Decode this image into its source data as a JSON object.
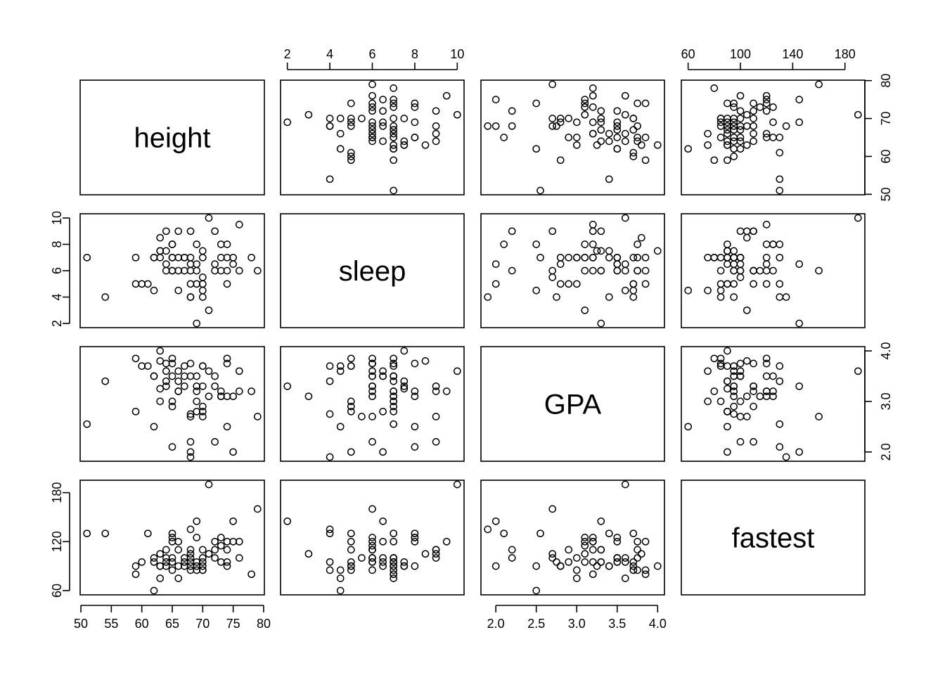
{
  "chart_data": {
    "type": "scatter",
    "title": "",
    "variables": [
      "height",
      "sleep",
      "GPA",
      "fastest"
    ],
    "ranges": {
      "height": [
        51,
        79
      ],
      "sleep": [
        2,
        10
      ],
      "GPA": [
        1.9,
        4.0
      ],
      "fastest": [
        60,
        190
      ]
    },
    "ticks": {
      "height": [
        50,
        55,
        60,
        65,
        70,
        75,
        80
      ],
      "sleep": [
        2,
        4,
        6,
        8,
        10
      ],
      "GPA": [
        2.0,
        2.5,
        3.0,
        3.5,
        4.0
      ],
      "GPA_right": [
        2.0,
        3.0,
        4.0
      ],
      "fastest_top": [
        60,
        100,
        140,
        180
      ],
      "fastest_left": [
        60,
        120,
        180
      ],
      "height_right": [
        50,
        60,
        70,
        80
      ]
    },
    "tick_labels": {
      "height_bottom": [
        "50",
        "55",
        "60",
        "65",
        "70",
        "75",
        "80"
      ],
      "sleep_top": [
        "2",
        "4",
        "6",
        "8",
        "10"
      ],
      "sleep_left": [
        "2",
        "4",
        "6",
        "8",
        "10"
      ],
      "GPA_bottom": [
        "2.0",
        "2.5",
        "3.0",
        "3.5",
        "4.0"
      ],
      "GPA_right": [
        "2.0",
        "3.0",
        "4.0"
      ],
      "fastest_top": [
        "60",
        "100",
        "140",
        "180"
      ],
      "fastest_left": [
        "60",
        "120",
        "180"
      ],
      "height_right": [
        "50",
        "60",
        "70",
        "80"
      ]
    },
    "grid": false,
    "legend": "none",
    "point_style": "open-circle",
    "observations": [
      [
        51,
        7,
        2.55,
        130
      ],
      [
        54,
        4,
        3.4,
        130
      ],
      [
        59,
        5,
        2.8,
        90
      ],
      [
        59,
        7,
        3.85,
        80
      ],
      [
        60,
        5,
        3.7,
        95
      ],
      [
        61,
        5,
        3.7,
        130
      ],
      [
        62,
        4.5,
        2.5,
        60
      ],
      [
        62,
        7,
        3.5,
        100
      ],
      [
        62,
        7,
        3.5,
        95
      ],
      [
        63,
        7.5,
        4.0,
        90
      ],
      [
        63,
        8.5,
        3.8,
        105
      ],
      [
        63,
        7,
        3.0,
        75
      ],
      [
        63,
        7.5,
        3.25,
        90
      ],
      [
        64,
        9,
        3.3,
        110
      ],
      [
        64,
        6.5,
        3.6,
        95
      ],
      [
        64,
        6,
        3.75,
        100
      ],
      [
        64,
        7.5,
        3.4,
        90
      ],
      [
        65,
        8,
        2.1,
        130
      ],
      [
        65,
        7,
        2.9,
        95
      ],
      [
        65,
        6,
        3.85,
        85
      ],
      [
        65,
        6,
        3.5,
        125
      ],
      [
        65,
        7,
        3.0,
        100
      ],
      [
        65,
        8,
        3.75,
        120
      ],
      [
        66,
        9,
        3.2,
        110
      ],
      [
        66,
        7,
        3.4,
        90
      ],
      [
        66,
        4.5,
        3.6,
        75
      ],
      [
        66,
        6,
        3.2,
        120
      ],
      [
        67,
        7,
        3.7,
        90
      ],
      [
        67,
        7,
        3.5,
        100
      ],
      [
        67,
        6,
        3.3,
        95
      ],
      [
        68,
        9,
        2.7,
        105
      ],
      [
        68,
        4,
        1.9,
        135
      ],
      [
        68,
        5,
        2.0,
        90
      ],
      [
        68,
        7,
        3.75,
        85
      ],
      [
        68,
        6,
        2.2,
        110
      ],
      [
        68,
        6.5,
        3.5,
        100
      ],
      [
        68,
        4,
        2.75,
        95
      ],
      [
        69,
        2,
        3.3,
        145
      ],
      [
        69,
        8,
        3.2,
        125
      ],
      [
        69,
        5,
        3.0,
        85
      ],
      [
        69,
        6.5,
        2.8,
        90
      ],
      [
        69,
        6,
        3.5,
        95
      ],
      [
        70,
        4,
        3.7,
        85
      ],
      [
        70,
        5,
        2.9,
        110
      ],
      [
        70,
        5.5,
        2.7,
        100
      ],
      [
        70,
        7,
        2.8,
        90
      ],
      [
        70,
        4.5,
        3.7,
        85
      ],
      [
        70,
        7.5,
        3.3,
        95
      ],
      [
        71,
        3,
        3.1,
        105
      ],
      [
        71,
        10,
        3.6,
        190
      ],
      [
        72,
        6,
        3.3,
        110
      ],
      [
        72,
        9,
        2.2,
        100
      ],
      [
        72,
        6.5,
        3.5,
        120
      ],
      [
        73,
        8,
        3.1,
        125
      ],
      [
        73,
        7,
        3.2,
        95
      ],
      [
        73,
        6,
        3.1,
        115
      ],
      [
        74,
        8,
        2.5,
        90
      ],
      [
        74,
        5,
        3.85,
        120
      ],
      [
        74,
        7,
        3.1,
        95
      ],
      [
        74,
        6,
        3.75,
        110
      ],
      [
        75,
        6.5,
        2.0,
        145
      ],
      [
        75,
        7,
        3.1,
        120
      ],
      [
        76,
        6,
        3.6,
        100
      ],
      [
        76,
        9.5,
        3.2,
        120
      ],
      [
        78,
        7,
        3.2,
        80
      ],
      [
        79,
        6,
        2.7,
        160
      ]
    ]
  },
  "panels": {
    "diag_labels": [
      "height",
      "sleep",
      "GPA",
      "fastest"
    ]
  }
}
